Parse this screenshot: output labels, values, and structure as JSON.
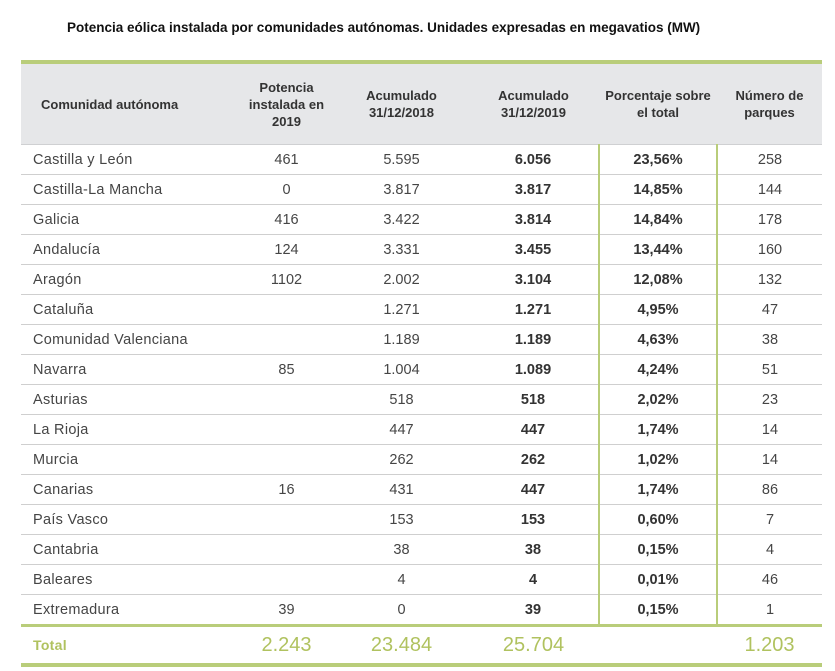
{
  "title": "Potencia eólica instalada por comunidades autónomas. Unidades expresadas en megavatios (MW)",
  "headers": {
    "community": "Comunidad autónoma",
    "installed_2019": "Potencia instalada en 2019",
    "cumulative_2018": "Acumulado 31/12/2018",
    "cumulative_2019": "Acumulado 31/12/2019",
    "percentage": "Porcentaje sobre el total",
    "parks": "Número de parques"
  },
  "rows": [
    {
      "community": "Castilla y León",
      "installed_2019": "461",
      "cumulative_2018": "5.595",
      "cumulative_2019": "6.056",
      "percentage": "23,56%",
      "parks": "258"
    },
    {
      "community": "Castilla-La Mancha",
      "installed_2019": "0",
      "cumulative_2018": "3.817",
      "cumulative_2019": "3.817",
      "percentage": "14,85%",
      "parks": "144"
    },
    {
      "community": "Galicia",
      "installed_2019": "416",
      "cumulative_2018": "3.422",
      "cumulative_2019": "3.814",
      "percentage": "14,84%",
      "parks": "178"
    },
    {
      "community": "Andalucía",
      "installed_2019": "124",
      "cumulative_2018": "3.331",
      "cumulative_2019": "3.455",
      "percentage": "13,44%",
      "parks": "160"
    },
    {
      "community": "Aragón",
      "installed_2019": "1102",
      "cumulative_2018": "2.002",
      "cumulative_2019": "3.104",
      "percentage": "12,08%",
      "parks": "132"
    },
    {
      "community": "Cataluña",
      "installed_2019": "",
      "cumulative_2018": "1.271",
      "cumulative_2019": "1.271",
      "percentage": "4,95%",
      "parks": "47"
    },
    {
      "community": "Comunidad Valenciana",
      "installed_2019": "",
      "cumulative_2018": "1.189",
      "cumulative_2019": "1.189",
      "percentage": "4,63%",
      "parks": "38"
    },
    {
      "community": "Navarra",
      "installed_2019": "85",
      "cumulative_2018": "1.004",
      "cumulative_2019": "1.089",
      "percentage": "4,24%",
      "parks": "51"
    },
    {
      "community": "Asturias",
      "installed_2019": "",
      "cumulative_2018": "518",
      "cumulative_2019": "518",
      "percentage": "2,02%",
      "parks": "23"
    },
    {
      "community": "La Rioja",
      "installed_2019": "",
      "cumulative_2018": "447",
      "cumulative_2019": "447",
      "percentage": "1,74%",
      "parks": "14"
    },
    {
      "community": "Murcia",
      "installed_2019": "",
      "cumulative_2018": "262",
      "cumulative_2019": "262",
      "percentage": "1,02%",
      "parks": "14"
    },
    {
      "community": "Canarias",
      "installed_2019": "16",
      "cumulative_2018": "431",
      "cumulative_2019": "447",
      "percentage": "1,74%",
      "parks": "86"
    },
    {
      "community": "País Vasco",
      "installed_2019": "",
      "cumulative_2018": "153",
      "cumulative_2019": "153",
      "percentage": "0,60%",
      "parks": "7"
    },
    {
      "community": "Cantabria",
      "installed_2019": "",
      "cumulative_2018": "38",
      "cumulative_2019": "38",
      "percentage": "0,15%",
      "parks": "4"
    },
    {
      "community": "Baleares",
      "installed_2019": "",
      "cumulative_2018": "4",
      "cumulative_2019": "4",
      "percentage": "0,01%",
      "parks": "46"
    },
    {
      "community": "Extremadura",
      "installed_2019": "39",
      "cumulative_2018": "0",
      "cumulative_2019": "39",
      "percentage": "0,15%",
      "parks": "1"
    }
  ],
  "total": {
    "label": "Total",
    "installed_2019": "2.243",
    "cumulative_2018": "23.484",
    "cumulative_2019": "25.704",
    "percentage": "",
    "parks": "1.203"
  },
  "colors": {
    "accent": "#b9cd7a",
    "total_text": "#b0c25f",
    "header_bg": "#e6e7e9"
  }
}
